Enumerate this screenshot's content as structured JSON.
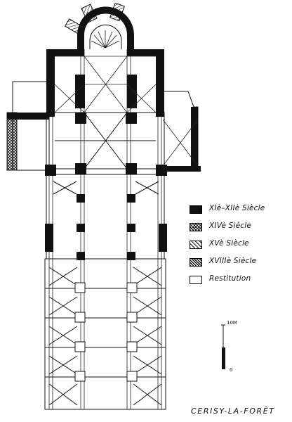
{
  "legend": [
    {
      "label": "XIè–XIIè Siècle",
      "pattern": "solid"
    },
    {
      "label": "XIVè Siècle",
      "pattern": "crosshatch"
    },
    {
      "label": "XVè Siècle",
      "pattern": "hatch"
    },
    {
      "label": "XVIIIè Siècle",
      "pattern": "dense-hatch"
    },
    {
      "label": "Restitution",
      "pattern": "empty"
    }
  ],
  "scale": {
    "top_label": "10M",
    "bottom_label": "0"
  },
  "title": "CERISY-LA-FORÊT",
  "colors": {
    "ink": "#111111",
    "paper": "#ffffff"
  }
}
